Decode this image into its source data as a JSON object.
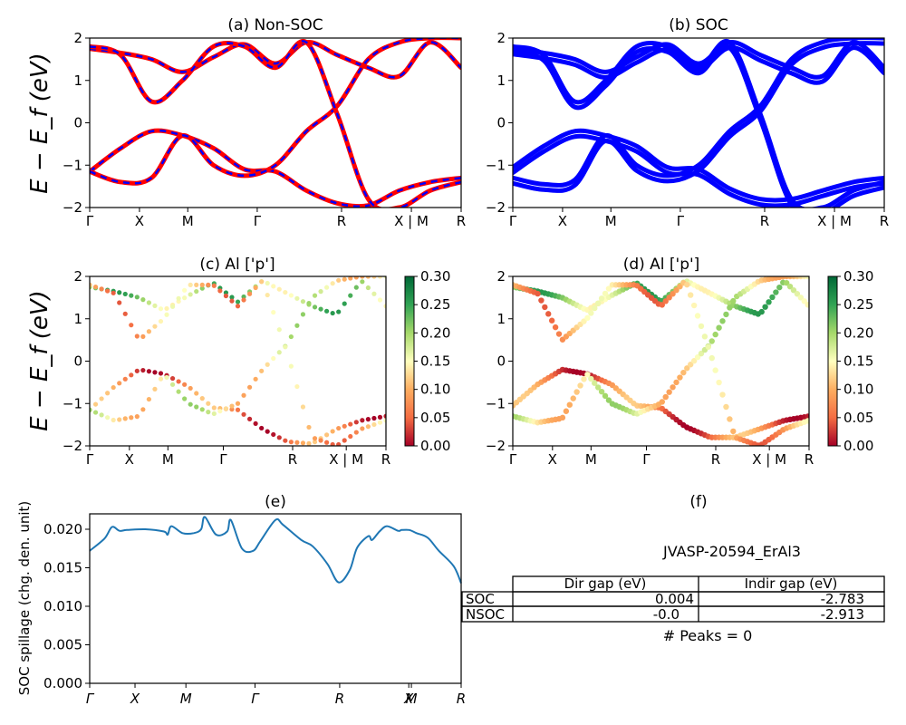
{
  "ylabel_band": "E − E_f (eV)",
  "panels": {
    "a": {
      "title": "(a) Non-SOC"
    },
    "b": {
      "title": "(b) SOC"
    },
    "c": {
      "title": "(c)  Al ['p']"
    },
    "d": {
      "title": "(d) Al ['p']"
    },
    "e": {
      "title": "(e)"
    },
    "f": {
      "title": "(f)"
    }
  },
  "colorbar": {
    "ticks": [
      "0.30",
      "0.25",
      "0.20",
      "0.15",
      "0.10",
      "0.05",
      "0.00"
    ],
    "stops": [
      "#006837",
      "#31a354",
      "#a6d96a",
      "#ffffbf",
      "#fdae61",
      "#f46d43",
      "#a50026"
    ]
  },
  "chart_data": [
    {
      "type": "line",
      "title": "(a) Non-SOC",
      "ylabel": "E − E_f (eV)",
      "ylim": [
        -2,
        2
      ],
      "yticks": [
        "2",
        "1",
        "0",
        "−1",
        "−2"
      ],
      "kpath": [
        "Γ",
        "X",
        "M",
        "Γ",
        "R",
        "X | M",
        "R"
      ],
      "series_colors": [
        "#ff0000",
        "#0000ff"
      ],
      "series": [
        {
          "values": [
            1.75,
            1.65,
            1.5,
            1.2,
            1.55,
            1.85,
            1.4,
            1.9,
            1.6,
            1.3,
            1.1,
            1.9,
            1.3
          ]
        },
        {
          "values": [
            -1.15,
            -0.6,
            -0.2,
            -0.3,
            -0.6,
            -1.1,
            -1.15,
            -1.6,
            -1.9,
            -1.95,
            -1.6,
            -1.4,
            -1.3
          ]
        },
        {
          "values": [
            -1.15,
            -1.4,
            -1.3,
            -0.3,
            -1.0,
            -1.25,
            -1.0,
            -0.2,
            0.4,
            1.5,
            1.9,
            2.0,
            2.0
          ]
        },
        {
          "values": [
            1.8,
            1.6,
            0.5,
            1.0,
            1.8,
            1.8,
            1.3,
            1.9,
            0.2,
            -1.8,
            -2.0,
            -1.6,
            -1.4
          ]
        }
      ]
    },
    {
      "type": "line",
      "title": "(b) SOC",
      "ylim": [
        -2,
        2
      ],
      "yticks": [
        "2",
        "1",
        "0",
        "−1",
        "−2"
      ],
      "kpath": [
        "Γ",
        "X",
        "M",
        "Γ",
        "R",
        "X | M",
        "R"
      ],
      "series_colors": [
        "#0000ff"
      ],
      "series": [
        {
          "values": [
            1.75,
            1.65,
            1.5,
            1.2,
            1.55,
            1.85,
            1.4,
            1.9,
            1.6,
            1.3,
            1.1,
            1.9,
            1.3
          ]
        },
        {
          "values": [
            -1.05,
            -0.55,
            -0.2,
            -0.3,
            -0.55,
            -1.05,
            -1.1,
            -1.55,
            -1.8,
            -1.8,
            -1.6,
            -1.4,
            -1.3
          ]
        },
        {
          "values": [
            -1.3,
            -1.45,
            -1.35,
            -0.3,
            -1.0,
            -1.25,
            -1.0,
            -0.2,
            0.4,
            1.5,
            1.9,
            2.0,
            2.0
          ]
        },
        {
          "values": [
            1.8,
            1.6,
            0.5,
            1.0,
            1.8,
            1.8,
            1.3,
            1.9,
            0.2,
            -1.8,
            -2.0,
            -1.6,
            -1.4
          ]
        }
      ]
    },
    {
      "type": "scatter",
      "title": "(c)  Al ['p']",
      "ylabel": "E − E_f (eV)",
      "ylim": [
        -2,
        2
      ],
      "yticks": [
        "2",
        "1",
        "0",
        "−1",
        "−2"
      ],
      "kpath": [
        "Γ",
        "X",
        "M",
        "Γ",
        "R",
        "X | M",
        "R"
      ],
      "colorbar_range": [
        0.0,
        0.3
      ]
    },
    {
      "type": "scatter",
      "title": "(d) Al ['p']",
      "ylim": [
        -2,
        2
      ],
      "yticks": [
        "2",
        "1",
        "0",
        "−1",
        "−2"
      ],
      "kpath": [
        "Γ",
        "X",
        "M",
        "Γ",
        "R",
        "X | M",
        "R"
      ],
      "colorbar_range": [
        0.0,
        0.3
      ]
    },
    {
      "type": "line",
      "title": "(e)",
      "ylabel": "SOC spillage (chg. den. unit)",
      "ylim": [
        0,
        0.022
      ],
      "yticks": [
        "0.020",
        "0.015",
        "0.010",
        "0.005",
        "0.000"
      ],
      "kpath": [
        "Γ",
        "X",
        "M",
        "Γ",
        "R",
        "X",
        "M",
        "R"
      ],
      "series_colors": [
        "#1f77b4"
      ],
      "x": [
        0,
        0.04,
        0.06,
        0.08,
        0.1,
        0.15,
        0.2,
        0.21,
        0.22,
        0.25,
        0.28,
        0.3,
        0.31,
        0.34,
        0.37,
        0.38,
        0.41,
        0.44,
        0.46,
        0.5,
        0.52,
        0.57,
        0.6,
        0.64,
        0.67,
        0.7,
        0.72,
        0.75,
        0.76,
        0.78,
        0.8,
        0.83,
        0.84,
        0.86,
        0.88,
        0.91,
        0.94,
        0.98,
        1.0
      ],
      "values": [
        0.0172,
        0.0188,
        0.0203,
        0.0198,
        0.0199,
        0.02,
        0.0197,
        0.0193,
        0.0204,
        0.0195,
        0.0195,
        0.02,
        0.0216,
        0.0193,
        0.0197,
        0.0212,
        0.0175,
        0.0172,
        0.0185,
        0.0212,
        0.0206,
        0.0186,
        0.0178,
        0.0155,
        0.0131,
        0.0147,
        0.0176,
        0.0191,
        0.0186,
        0.0197,
        0.0204,
        0.0198,
        0.0199,
        0.0199,
        0.0195,
        0.0189,
        0.0172,
        0.0152,
        0.013
      ]
    }
  ],
  "table": {
    "title": "JVASP-20594_ErAl3",
    "headers": [
      "",
      "Dir gap (eV)",
      "Indir gap (eV)"
    ],
    "rows": [
      [
        "SOC",
        "0.004",
        "-2.783"
      ],
      [
        "NSOC",
        "-0.0",
        "-2.913"
      ]
    ],
    "note": "# Peaks = 0"
  }
}
